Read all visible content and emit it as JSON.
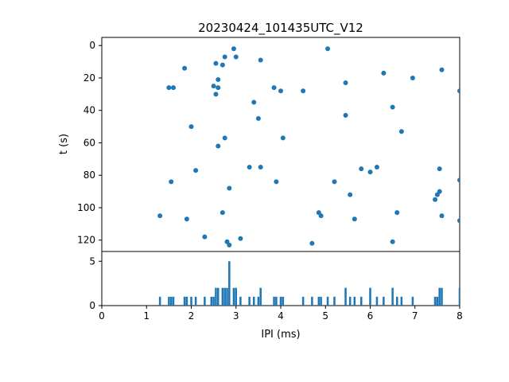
{
  "figure": {
    "title": "20230424_101435UTC_V12",
    "background": "#ffffff",
    "accent_color": "#1f77b4",
    "axis_color": "#000000"
  },
  "chart_data": [
    {
      "type": "scatter",
      "title": "20230424_101435UTC_V12",
      "xlabel": "",
      "ylabel": "t (s)",
      "xlim": [
        0,
        8
      ],
      "ylim": [
        -5,
        127
      ],
      "y_inverted": true,
      "yticks": [
        0,
        20,
        40,
        60,
        80,
        100,
        120
      ],
      "grid": false,
      "marker_color": "#1f77b4",
      "points": [
        [
          2.95,
          2
        ],
        [
          5.05,
          2
        ],
        [
          2.75,
          7
        ],
        [
          3.0,
          7
        ],
        [
          3.55,
          9
        ],
        [
          2.55,
          11
        ],
        [
          2.7,
          12
        ],
        [
          1.85,
          14
        ],
        [
          7.6,
          15
        ],
        [
          6.3,
          17
        ],
        [
          6.95,
          20
        ],
        [
          2.6,
          21
        ],
        [
          5.45,
          23
        ],
        [
          2.5,
          25
        ],
        [
          2.6,
          26
        ],
        [
          1.5,
          26
        ],
        [
          1.6,
          26
        ],
        [
          3.85,
          26
        ],
        [
          4.0,
          28
        ],
        [
          4.5,
          28
        ],
        [
          8.0,
          28
        ],
        [
          2.55,
          30
        ],
        [
          3.4,
          35
        ],
        [
          6.5,
          38
        ],
        [
          5.45,
          43
        ],
        [
          3.5,
          45
        ],
        [
          2.0,
          50
        ],
        [
          6.7,
          53
        ],
        [
          2.75,
          57
        ],
        [
          4.05,
          57
        ],
        [
          2.6,
          62
        ],
        [
          3.3,
          75
        ],
        [
          3.55,
          75
        ],
        [
          6.15,
          75
        ],
        [
          5.8,
          76
        ],
        [
          2.1,
          77
        ],
        [
          6.0,
          78
        ],
        [
          7.55,
          76
        ],
        [
          8.0,
          83
        ],
        [
          1.55,
          84
        ],
        [
          3.9,
          84
        ],
        [
          5.2,
          84
        ],
        [
          2.85,
          88
        ],
        [
          7.55,
          90
        ],
        [
          5.55,
          92
        ],
        [
          7.5,
          92
        ],
        [
          7.45,
          95
        ],
        [
          2.7,
          103
        ],
        [
          4.85,
          103
        ],
        [
          6.6,
          103
        ],
        [
          1.3,
          105
        ],
        [
          4.9,
          105
        ],
        [
          7.6,
          105
        ],
        [
          1.9,
          107
        ],
        [
          5.65,
          107
        ],
        [
          8.0,
          108
        ],
        [
          2.3,
          118
        ],
        [
          3.1,
          119
        ],
        [
          2.8,
          121
        ],
        [
          6.5,
          121
        ],
        [
          4.7,
          122
        ],
        [
          2.85,
          123
        ]
      ]
    },
    {
      "type": "bar",
      "title": "",
      "xlabel": "IPI (ms)",
      "ylabel": "",
      "xlim": [
        0,
        8
      ],
      "ylim": [
        0,
        6.1
      ],
      "xticks": [
        0,
        1,
        2,
        3,
        4,
        5,
        6,
        7,
        8
      ],
      "yticks": [
        0,
        5
      ],
      "grid": false,
      "bar_color": "#1f77b4",
      "bar_width": 0.045,
      "bars": [
        [
          1.3,
          1
        ],
        [
          1.5,
          1
        ],
        [
          1.55,
          1
        ],
        [
          1.6,
          1
        ],
        [
          1.85,
          1
        ],
        [
          1.9,
          1
        ],
        [
          2.0,
          1
        ],
        [
          2.1,
          1
        ],
        [
          2.3,
          1
        ],
        [
          2.45,
          1
        ],
        [
          2.5,
          1
        ],
        [
          2.55,
          2
        ],
        [
          2.6,
          2
        ],
        [
          2.7,
          2
        ],
        [
          2.75,
          2
        ],
        [
          2.8,
          2
        ],
        [
          2.85,
          5
        ],
        [
          2.95,
          2
        ],
        [
          3.0,
          2
        ],
        [
          3.1,
          1
        ],
        [
          3.3,
          1
        ],
        [
          3.4,
          1
        ],
        [
          3.5,
          1
        ],
        [
          3.55,
          2
        ],
        [
          3.85,
          1
        ],
        [
          3.9,
          1
        ],
        [
          4.0,
          1
        ],
        [
          4.05,
          1
        ],
        [
          4.5,
          1
        ],
        [
          4.7,
          1
        ],
        [
          4.85,
          1
        ],
        [
          4.9,
          1
        ],
        [
          5.05,
          1
        ],
        [
          5.2,
          1
        ],
        [
          5.45,
          2
        ],
        [
          5.55,
          1
        ],
        [
          5.65,
          1
        ],
        [
          5.8,
          1
        ],
        [
          6.0,
          2
        ],
        [
          6.15,
          1
        ],
        [
          6.3,
          1
        ],
        [
          6.5,
          2
        ],
        [
          6.6,
          1
        ],
        [
          6.7,
          1
        ],
        [
          6.95,
          1
        ],
        [
          7.45,
          1
        ],
        [
          7.5,
          1
        ],
        [
          7.55,
          2
        ],
        [
          7.6,
          2
        ],
        [
          8.0,
          2
        ]
      ]
    }
  ]
}
